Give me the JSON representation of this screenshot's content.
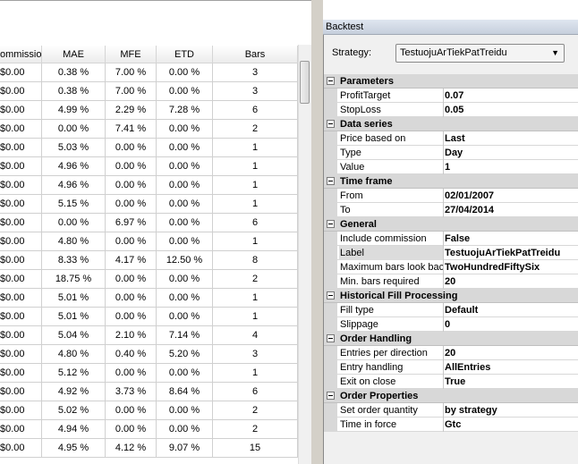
{
  "table": {
    "columns": [
      "ommissio",
      "MAE",
      "MFE",
      "ETD",
      "Bars"
    ],
    "rows": [
      [
        "$0.00",
        "0.38 %",
        "7.00 %",
        "0.00 %",
        "3"
      ],
      [
        "$0.00",
        "0.38 %",
        "7.00 %",
        "0.00 %",
        "3"
      ],
      [
        "$0.00",
        "4.99 %",
        "2.29 %",
        "7.28 %",
        "6"
      ],
      [
        "$0.00",
        "0.00 %",
        "7.41 %",
        "0.00 %",
        "2"
      ],
      [
        "$0.00",
        "5.03 %",
        "0.00 %",
        "0.00 %",
        "1"
      ],
      [
        "$0.00",
        "4.96 %",
        "0.00 %",
        "0.00 %",
        "1"
      ],
      [
        "$0.00",
        "4.96 %",
        "0.00 %",
        "0.00 %",
        "1"
      ],
      [
        "$0.00",
        "5.15 %",
        "0.00 %",
        "0.00 %",
        "1"
      ],
      [
        "$0.00",
        "0.00 %",
        "6.97 %",
        "0.00 %",
        "6"
      ],
      [
        "$0.00",
        "4.80 %",
        "0.00 %",
        "0.00 %",
        "1"
      ],
      [
        "$0.00",
        "8.33 %",
        "4.17 %",
        "12.50 %",
        "8"
      ],
      [
        "$0.00",
        "18.75 %",
        "0.00 %",
        "0.00 %",
        "2"
      ],
      [
        "$0.00",
        "5.01 %",
        "0.00 %",
        "0.00 %",
        "1"
      ],
      [
        "$0.00",
        "5.01 %",
        "0.00 %",
        "0.00 %",
        "1"
      ],
      [
        "$0.00",
        "5.04 %",
        "2.10 %",
        "7.14 %",
        "4"
      ],
      [
        "$0.00",
        "4.80 %",
        "0.40 %",
        "5.20 %",
        "3"
      ],
      [
        "$0.00",
        "5.12 %",
        "0.00 %",
        "0.00 %",
        "1"
      ],
      [
        "$0.00",
        "4.92 %",
        "3.73 %",
        "8.64 %",
        "6"
      ],
      [
        "$0.00",
        "5.02 %",
        "0.00 %",
        "0.00 %",
        "2"
      ],
      [
        "$0.00",
        "4.94 %",
        "0.00 %",
        "0.00 %",
        "2"
      ],
      [
        "$0.00",
        "4.95 %",
        "4.12 %",
        "9.07 %",
        "15"
      ]
    ]
  },
  "panel": {
    "title": "Backtest",
    "strategy_label": "Strategy:",
    "strategy_value": "TestuojuArTiekPatTreidu",
    "groups": [
      {
        "name": "Parameters",
        "properties": [
          {
            "name": "ProfitTarget",
            "value": "0.07"
          },
          {
            "name": "StopLoss",
            "value": "0.05"
          }
        ]
      },
      {
        "name": "Data series",
        "properties": [
          {
            "name": "Price based on",
            "value": "Last"
          },
          {
            "name": "Type",
            "value": "Day"
          },
          {
            "name": "Value",
            "value": "1"
          }
        ]
      },
      {
        "name": "Time frame",
        "properties": [
          {
            "name": "From",
            "value": "02/01/2007"
          },
          {
            "name": "To",
            "value": "27/04/2014"
          }
        ]
      },
      {
        "name": "General",
        "properties": [
          {
            "name": "Include commission",
            "value": "False"
          },
          {
            "name": "Label",
            "value": "TestuojuArTiekPatTreidu"
          },
          {
            "name": "Maximum bars look bac",
            "value": "TwoHundredFiftySix"
          },
          {
            "name": "Min. bars required",
            "value": "20"
          }
        ]
      },
      {
        "name": "Historical Fill Processing",
        "properties": [
          {
            "name": "Fill type",
            "value": "Default"
          },
          {
            "name": "Slippage",
            "value": "0"
          }
        ]
      },
      {
        "name": "Order Handling",
        "properties": [
          {
            "name": "Entries per direction",
            "value": "20"
          },
          {
            "name": "Entry handling",
            "value": "AllEntries"
          },
          {
            "name": "Exit on close",
            "value": "True"
          }
        ]
      },
      {
        "name": "Order Properties",
        "properties": [
          {
            "name": "Set order quantity",
            "value": "by strategy"
          },
          {
            "name": "Time in force",
            "value": "Gtc"
          }
        ]
      }
    ]
  }
}
